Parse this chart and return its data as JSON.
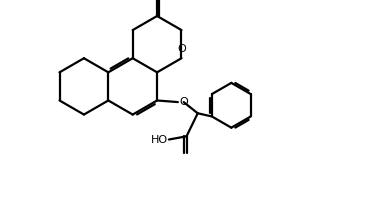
{
  "background_color": "#ffffff",
  "line_color": "#000000",
  "line_width": 1.6,
  "figsize": [
    3.87,
    2.24
  ],
  "dpi": 100,
  "xlim": [
    0,
    10
  ],
  "ylim": [
    -2.5,
    4.5
  ]
}
